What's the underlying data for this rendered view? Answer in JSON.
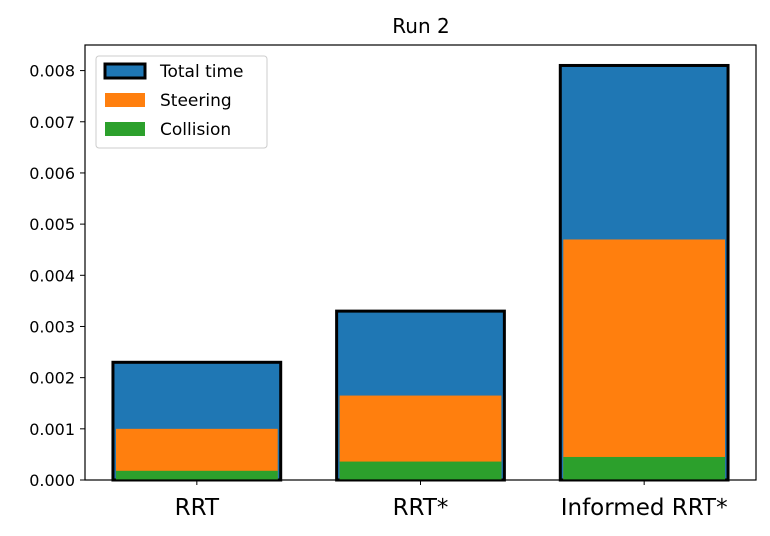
{
  "chart_data": {
    "type": "bar",
    "title": "Run 2",
    "xlabel": "",
    "ylabel": "",
    "categories": [
      "RRT",
      "RRT*",
      "Informed RRT*"
    ],
    "ylim": [
      0,
      0.0085
    ],
    "yticks": [
      "0.000",
      "0.001",
      "0.002",
      "0.003",
      "0.004",
      "0.005",
      "0.006",
      "0.007",
      "0.008"
    ],
    "ytick_values": [
      0,
      0.001,
      0.002,
      0.003,
      0.004,
      0.005,
      0.006,
      0.007,
      0.008
    ],
    "series": [
      {
        "name": "Total time",
        "color": "#1f77b4",
        "edge": "#000000",
        "values": [
          0.0023,
          0.0033,
          0.0081
        ]
      },
      {
        "name": "Steering",
        "color": "#ff7f0e",
        "values": [
          0.001,
          0.00165,
          0.0047
        ]
      },
      {
        "name": "Collision",
        "color": "#2ca02c",
        "values": [
          0.00018,
          0.00036,
          0.00045
        ]
      }
    ],
    "legend_position": "top-left",
    "grid": false
  }
}
